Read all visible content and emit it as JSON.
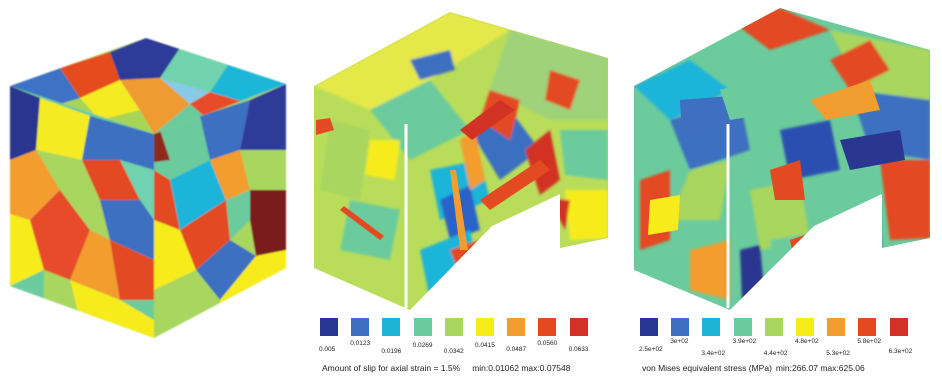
{
  "figure": {
    "panels": [
      {
        "name": "grain-structure-cube"
      },
      {
        "name": "slip-amount-cube"
      },
      {
        "name": "von-mises-stress-cube"
      }
    ]
  },
  "legends": [
    {
      "name": "slip-legend",
      "colors": [
        "#283593",
        "#3e6fc0",
        "#1eb4d8",
        "#6ccb9d",
        "#a9d65e",
        "#f6ec1c",
        "#f29d2f",
        "#e34a22",
        "#d23223"
      ],
      "ticks": [
        "0.005",
        "0.0123",
        "0.0196",
        "0.0269",
        "0.0342",
        "0.0415",
        "0.0487",
        "0.0560",
        "0.0633"
      ],
      "caption": "Amount of slip for axial strain = 1.5%",
      "range": "min:0.01062 max:0.07548"
    },
    {
      "name": "stress-legend",
      "colors": [
        "#283593",
        "#3e6fc0",
        "#1eb4d8",
        "#6ccb9d",
        "#a9d65e",
        "#f6ec1c",
        "#f29d2f",
        "#e34a22",
        "#d23223"
      ],
      "ticks": [
        "2.5e+02",
        "3e+02",
        "3.4e+02",
        "3.9e+02",
        "4.4e+02",
        "4.8e+02",
        "5.3e+02",
        "5.8e+02",
        "6.3e+02"
      ],
      "caption": "von Mises equivalent stress (MPa)",
      "range": "min:266.07 max:625.06"
    }
  ]
}
